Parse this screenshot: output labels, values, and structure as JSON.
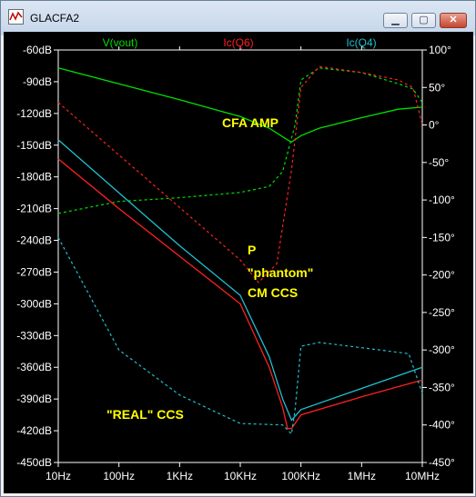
{
  "window": {
    "title": "GLACFA2"
  },
  "title_buttons": {
    "minimize": "▁",
    "maximize": "▢",
    "close": "✕"
  },
  "icons": {
    "app": "waveform-window-icon"
  },
  "chart_data": {
    "type": "line",
    "x_scale": "log",
    "xlim": [
      10,
      10000000
    ],
    "ylim": [
      -450,
      -60
    ],
    "y2lim": [
      -450,
      100
    ],
    "x_tick_labels": [
      "10Hz",
      "100Hz",
      "1KHz",
      "10KHz",
      "100KHz",
      "1MHz",
      "10MHz"
    ],
    "y_tick_labels": [
      "-60dB",
      "-90dB",
      "-120dB",
      "-150dB",
      "-180dB",
      "-210dB",
      "-240dB",
      "-270dB",
      "-300dB",
      "-330dB",
      "-360dB",
      "-390dB",
      "-420dB",
      "-450dB"
    ],
    "y2_tick_labels": [
      "100°",
      "50°",
      "0°",
      "-50°",
      "-100°",
      "-150°",
      "-200°",
      "-250°",
      "-300°",
      "-350°",
      "-400°",
      "-450°"
    ],
    "series": [
      {
        "name": "V(vout)",
        "color": "#00e000",
        "magnitude": [
          [
            10,
            -77
          ],
          [
            100,
            -92
          ],
          [
            1000,
            -107
          ],
          [
            10000,
            -123
          ],
          [
            30000,
            -134
          ],
          [
            60000,
            -145
          ],
          [
            70000,
            -147
          ],
          [
            100000,
            -141
          ],
          [
            200000,
            -134
          ],
          [
            1000000,
            -124
          ],
          [
            4000000,
            -116
          ],
          [
            10000000,
            -114
          ]
        ],
        "phase": [
          [
            10,
            -118
          ],
          [
            100,
            -102
          ],
          [
            1000,
            -97
          ],
          [
            10000,
            -90
          ],
          [
            30000,
            -82
          ],
          [
            50000,
            -62
          ],
          [
            80000,
            0
          ],
          [
            100000,
            60
          ],
          [
            200000,
            76
          ],
          [
            1000000,
            70
          ],
          [
            4000000,
            55
          ],
          [
            7000000,
            48
          ],
          [
            10000000,
            30
          ]
        ]
      },
      {
        "name": "Ic(Q6)",
        "color": "#ff2020",
        "magnitude": [
          [
            10,
            -163
          ],
          [
            100,
            -210
          ],
          [
            1000,
            -255
          ],
          [
            10000,
            -300
          ],
          [
            30000,
            -360
          ],
          [
            50000,
            -398
          ],
          [
            60000,
            -418
          ],
          [
            70000,
            -418
          ],
          [
            100000,
            -405
          ],
          [
            1000000,
            -388
          ],
          [
            10000000,
            -372
          ]
        ],
        "phase": [
          [
            10,
            30
          ],
          [
            100,
            -40
          ],
          [
            1000,
            -110
          ],
          [
            10000,
            -180
          ],
          [
            20000,
            -210
          ],
          [
            40000,
            -185
          ],
          [
            70000,
            -60
          ],
          [
            100000,
            50
          ],
          [
            200000,
            78
          ],
          [
            1000000,
            70
          ],
          [
            4000000,
            60
          ],
          [
            7000000,
            50
          ],
          [
            10000000,
            0
          ]
        ]
      },
      {
        "name": "Ic(Q4)",
        "color": "#20c0d0",
        "magnitude": [
          [
            10,
            -145
          ],
          [
            100,
            -195
          ],
          [
            1000,
            -245
          ],
          [
            10000,
            -292
          ],
          [
            30000,
            -350
          ],
          [
            50000,
            -390
          ],
          [
            70000,
            -410
          ],
          [
            100000,
            -400
          ],
          [
            1000000,
            -380
          ],
          [
            10000000,
            -360
          ]
        ],
        "phase": [
          [
            10,
            -150
          ],
          [
            100,
            -300
          ],
          [
            1000,
            -360
          ],
          [
            10000,
            -398
          ],
          [
            50000,
            -400
          ],
          [
            70000,
            -412
          ],
          [
            80000,
            -380
          ],
          [
            100000,
            -295
          ],
          [
            200000,
            -290
          ],
          [
            2000000,
            -300
          ],
          [
            6000000,
            -305
          ],
          [
            10000000,
            -358
          ]
        ]
      }
    ],
    "annotations": [
      "CFA AMP",
      "P",
      "\"phantom\"",
      "CM CCS",
      "\"REAL\" CCS"
    ]
  }
}
